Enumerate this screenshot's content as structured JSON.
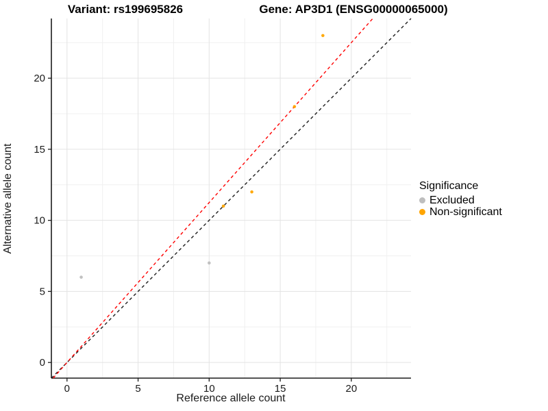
{
  "header": {
    "variant_title": "Variant: rs199695826",
    "gene_title": "Gene: AP3D1 (ENSG00000065000)"
  },
  "legend": {
    "title": "Significance",
    "items": [
      {
        "label": "Excluded",
        "color": "#bebebe"
      },
      {
        "label": "Non-significant",
        "color": "#ffa500"
      }
    ]
  },
  "chart_data": {
    "type": "scatter",
    "title": "Variant: rs199695826   Gene: AP3D1 (ENSG00000065000)",
    "xlabel": "Reference allele count",
    "ylabel": "Alternative allele count",
    "xlim": [
      -1.1,
      24.2
    ],
    "ylim": [
      -1.1,
      24.2
    ],
    "x_ticks": [
      0,
      5,
      10,
      15,
      20
    ],
    "y_ticks": [
      0,
      5,
      10,
      15,
      20
    ],
    "x_minor_gridlines": [
      2.5,
      7.5,
      12.5,
      17.5,
      22.5
    ],
    "y_minor_gridlines": [
      2.5,
      7.5,
      12.5,
      17.5,
      22.5
    ],
    "grid": true,
    "legend_position": "right",
    "series": [
      {
        "name": "Excluded",
        "color": "#bebebe",
        "points": [
          [
            1,
            6
          ],
          [
            10,
            7
          ]
        ]
      },
      {
        "name": "Non-significant",
        "color": "#ffa500",
        "points": [
          [
            11,
            11
          ],
          [
            13,
            12
          ],
          [
            16,
            18
          ],
          [
            18,
            23
          ]
        ]
      }
    ],
    "lines": [
      {
        "name": "identity-line",
        "slope": 1,
        "intercept": 0,
        "color": "#1a1a1a",
        "style": "dashed"
      },
      {
        "name": "allele-ratio-line",
        "slope": 1.125,
        "intercept": 0,
        "color": "#ff0000",
        "style": "dashed"
      }
    ],
    "style": {
      "major_grid_color": "#e3e3e3",
      "minor_grid_color": "#f0f0f0",
      "axis_line_color": "#1a1a1a",
      "tick_label_color": "#1a1a1a",
      "point_radius": 2.3,
      "legend_marker_colors": [
        "#bebebe",
        "#ffa500"
      ]
    }
  }
}
